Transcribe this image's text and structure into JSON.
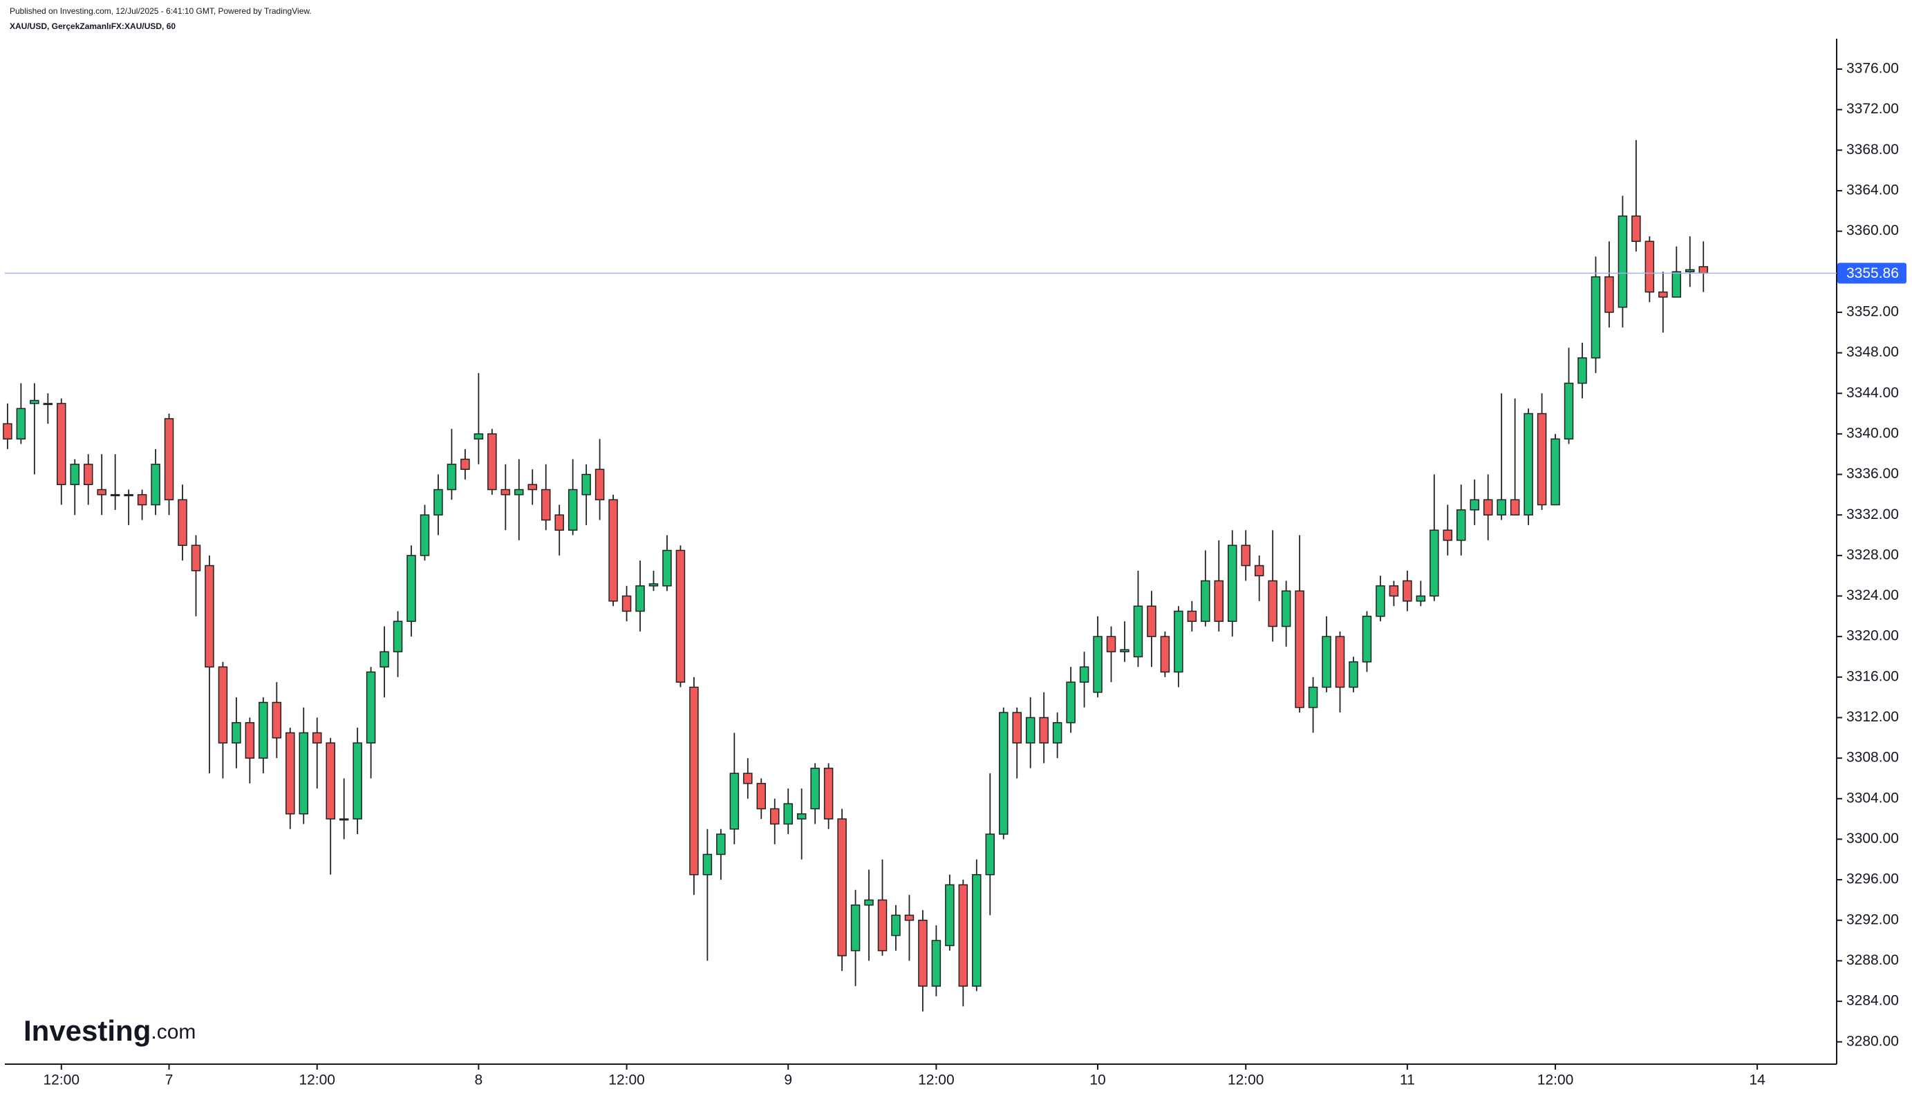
{
  "chart_data": {
    "type": "candlestick",
    "header": "Published on Investing.com, 12/Jul/2025 - 6:41:10 GMT, Powered by TradingView.",
    "symbol": "XAU/USD, GerçekZamanlıFX:XAU/USD, 60",
    "logo": {
      "name": "Investing",
      "suffix": ".com"
    },
    "up_color": "#1dbf73",
    "down_color": "#f05a5a",
    "last_price_color": "#2962ff",
    "open": [
      3341,
      3339.5,
      3343,
      3343,
      3343,
      3335,
      3337,
      3334.5,
      3334,
      3334,
      3334,
      3333,
      3341.5,
      3333.5,
      3329,
      3327,
      3317,
      3309.5,
      3311.5,
      3308,
      3313.5,
      3310.5,
      3302.5,
      3310.5,
      3309.5,
      3302,
      3302,
      3309.5,
      3317,
      3318.5,
      3321.5,
      3328,
      3332,
      3334.5,
      3337.5,
      3339.5,
      3340,
      3334.5,
      3334,
      3335,
      3334.5,
      3332,
      3330.5,
      3334,
      3336.5,
      3333.5,
      3324,
      3322.5,
      3325,
      3325,
      3328.5,
      3315,
      3296.5,
      3298.5,
      3301,
      3306.5,
      3305.5,
      3303,
      3301.5,
      3302,
      3303,
      3307,
      3302,
      3289,
      3293.5,
      3294,
      3290.5,
      3292.5,
      3292,
      3285.5,
      3289.5,
      3295.5,
      3285.5,
      3296.5,
      3300.5,
      3312.5,
      3309.5,
      3312,
      3309.5,
      3311.5,
      3315.5,
      3314.5,
      3320,
      3318.5,
      3318,
      3323,
      3320,
      3316.5,
      3322.5,
      3321.5,
      3325.5,
      3321.5,
      3329,
      3327,
      3325.5,
      3321,
      3324.5,
      3313,
      3315,
      3320,
      3315,
      3317.5,
      3322,
      3325,
      3325.5,
      3323.5,
      3324,
      3330.5,
      3329.5,
      3332.5,
      3333.5,
      3332,
      3333.5,
      3332,
      3342,
      3333,
      3339.5,
      3345,
      3347.5,
      3355.5,
      3352.5,
      3361.5,
      3359,
      3354,
      3353.5,
      3356,
      3356.5
    ],
    "high": [
      3343,
      3345,
      3345,
      3344,
      3343.5,
      3337.5,
      3338,
      3338,
      3338,
      3334.5,
      3334.5,
      3338.5,
      3342,
      3335,
      3330,
      3328,
      3317.5,
      3314,
      3312,
      3314,
      3315.5,
      3311,
      3313,
      3312,
      3310,
      3306,
      3311,
      3317,
      3321,
      3322.5,
      3329,
      3333,
      3336,
      3340.5,
      3338.5,
      3346,
      3340.5,
      3337,
      3337.5,
      3336.5,
      3337,
      3333,
      3337.5,
      3337,
      3339.5,
      3334,
      3325,
      3327.5,
      3326.5,
      3330,
      3329,
      3316,
      3301,
      3301,
      3310.5,
      3308,
      3306,
      3304,
      3305,
      3305,
      3307.5,
      3307.5,
      3303,
      3295,
      3297,
      3298,
      3293.5,
      3294.5,
      3293,
      3291.5,
      3296.5,
      3296,
      3298,
      3306.5,
      3313,
      3313,
      3314,
      3314.5,
      3312.5,
      3317,
      3318.5,
      3322,
      3321,
      3321.5,
      3326.5,
      3324.5,
      3320.5,
      3323,
      3323.5,
      3328.5,
      3329.5,
      3330.5,
      3330.5,
      3328,
      3330.5,
      3325.5,
      3330,
      3316,
      3322,
      3320.5,
      3318,
      3322.5,
      3326,
      3325.5,
      3326.5,
      3325.5,
      3336,
      3333,
      3335,
      3335.5,
      3336,
      3344,
      3343.5,
      3342.5,
      3344,
      3340,
      3348.5,
      3349,
      3357.5,
      3359,
      3363.5,
      3369,
      3359.5,
      3356,
      3358.5,
      3359.5,
      3359
    ],
    "low": [
      3338.5,
      3339,
      3336,
      3341,
      3333,
      3332,
      3333,
      3332,
      3332.5,
      3331,
      3331.5,
      3332,
      3332,
      3327.5,
      3322,
      3306.5,
      3306,
      3307,
      3305.5,
      3306.5,
      3308,
      3301,
      3301.5,
      3305,
      3296.5,
      3300,
      3300.5,
      3306,
      3314,
      3316,
      3320,
      3327.5,
      3330,
      3333.5,
      3335.5,
      3337,
      3334,
      3330.5,
      3329.5,
      3333,
      3330.5,
      3328,
      3330,
      3331,
      3331.5,
      3323,
      3321.5,
      3320.5,
      3324.5,
      3324.5,
      3315,
      3294.5,
      3288,
      3296,
      3299.5,
      3304,
      3302,
      3299.5,
      3300.5,
      3298,
      3301.5,
      3301,
      3287,
      3285.5,
      3288,
      3288.5,
      3289,
      3288,
      3283,
      3284.5,
      3289,
      3283.5,
      3285,
      3292.5,
      3300,
      3306,
      3307,
      3307.5,
      3308,
      3310.5,
      3313,
      3314,
      3315.5,
      3317.5,
      3317,
      3317,
      3316,
      3315,
      3320.5,
      3321,
      3320.5,
      3320,
      3325.5,
      3323.5,
      3319.5,
      3319,
      3312.5,
      3310.5,
      3314.5,
      3312.5,
      3314.5,
      3316.5,
      3321.5,
      3323,
      3322.5,
      3323,
      3323.5,
      3328,
      3328,
      3331,
      3329.5,
      3331.5,
      3332,
      3331,
      3332.5,
      3333,
      3339,
      3343.5,
      3346,
      3350.5,
      3350.5,
      3358,
      3353,
      3350,
      3353.5,
      3354.5,
      3354
    ],
    "close": [
      3339.5,
      3342.5,
      3343.3,
      3343,
      3335,
      3337,
      3335,
      3334,
      3334,
      3334,
      3333,
      3337,
      3333.5,
      3329,
      3326.5,
      3317,
      3309.5,
      3311.5,
      3308,
      3313.5,
      3310,
      3302.5,
      3310.5,
      3309.5,
      3302,
      3302,
      3309.5,
      3316.5,
      3318.5,
      3321.5,
      3328,
      3332,
      3334.5,
      3337,
      3336.5,
      3340,
      3334.5,
      3334,
      3334.5,
      3334.5,
      3331.5,
      3330.5,
      3334.5,
      3336,
      3333.5,
      3323.5,
      3322.5,
      3325,
      3325.2,
      3328.5,
      3315.5,
      3296.5,
      3298.5,
      3300.5,
      3306.5,
      3305.5,
      3303,
      3301.5,
      3303.5,
      3302.5,
      3307,
      3302,
      3288.5,
      3293.5,
      3294,
      3289,
      3292.5,
      3292,
      3285.5,
      3290,
      3295.5,
      3285.5,
      3296.5,
      3300.5,
      3312.5,
      3309.5,
      3312,
      3309.5,
      3311.5,
      3315.5,
      3317,
      3320,
      3318.5,
      3318.7,
      3323,
      3320,
      3316.5,
      3322.5,
      3321.5,
      3325.5,
      3321.5,
      3329,
      3327,
      3326,
      3321,
      3324.5,
      3313,
      3315,
      3320,
      3315,
      3317.5,
      3322,
      3325,
      3324,
      3323.5,
      3324,
      3330.5,
      3329.5,
      3332.5,
      3333.5,
      3332,
      3333.5,
      3332,
      3342,
      3333,
      3339.5,
      3345,
      3347.5,
      3355.5,
      3352,
      3361.5,
      3359,
      3354,
      3353.5,
      3356,
      3356.2,
      3355.86
    ],
    "last_price": {
      "value": 3355.86,
      "label": "3355.86"
    },
    "xlim": [
      -0.2,
      135.9
    ],
    "xticks": [
      {
        "value": 4,
        "label": "12:00"
      },
      {
        "value": 12,
        "label": "7"
      },
      {
        "value": 23,
        "label": "12:00"
      },
      {
        "value": 35,
        "label": "8"
      },
      {
        "value": 46,
        "label": "12:00"
      },
      {
        "value": 58,
        "label": "9"
      },
      {
        "value": 69,
        "label": "12:00"
      },
      {
        "value": 81,
        "label": "10"
      },
      {
        "value": 92,
        "label": "12:00"
      },
      {
        "value": 104,
        "label": "11"
      },
      {
        "value": 115,
        "label": "12:00"
      },
      {
        "value": 130,
        "label": "14"
      }
    ],
    "ylim": [
      3277.8,
      3379.0
    ],
    "yticks": [
      {
        "value": 3280,
        "label": "3280.00"
      },
      {
        "value": 3284,
        "label": "3284.00"
      },
      {
        "value": 3288,
        "label": "3288.00"
      },
      {
        "value": 3292,
        "label": "3292.00"
      },
      {
        "value": 3296,
        "label": "3296.00"
      },
      {
        "value": 3300,
        "label": "3300.00"
      },
      {
        "value": 3304,
        "label": "3304.00"
      },
      {
        "value": 3308,
        "label": "3308.00"
      },
      {
        "value": 3312,
        "label": "3312.00"
      },
      {
        "value": 3316,
        "label": "3316.00"
      },
      {
        "value": 3320,
        "label": "3320.00"
      },
      {
        "value": 3324,
        "label": "3324.00"
      },
      {
        "value": 3328,
        "label": "3328.00"
      },
      {
        "value": 3332,
        "label": "3332.00"
      },
      {
        "value": 3336,
        "label": "3336.00"
      },
      {
        "value": 3340,
        "label": "3340.00"
      },
      {
        "value": 3344,
        "label": "3344.00"
      },
      {
        "value": 3348,
        "label": "3348.00"
      },
      {
        "value": 3352,
        "label": "3352.00"
      },
      {
        "value": 3356,
        "label": "3356.00"
      },
      {
        "value": 3360,
        "label": "3360.00"
      },
      {
        "value": 3364,
        "label": "3364.00"
      },
      {
        "value": 3368,
        "label": "3368.00"
      },
      {
        "value": 3372,
        "label": "3372.00"
      },
      {
        "value": 3376,
        "label": "3376.00"
      }
    ],
    "grid": false
  }
}
